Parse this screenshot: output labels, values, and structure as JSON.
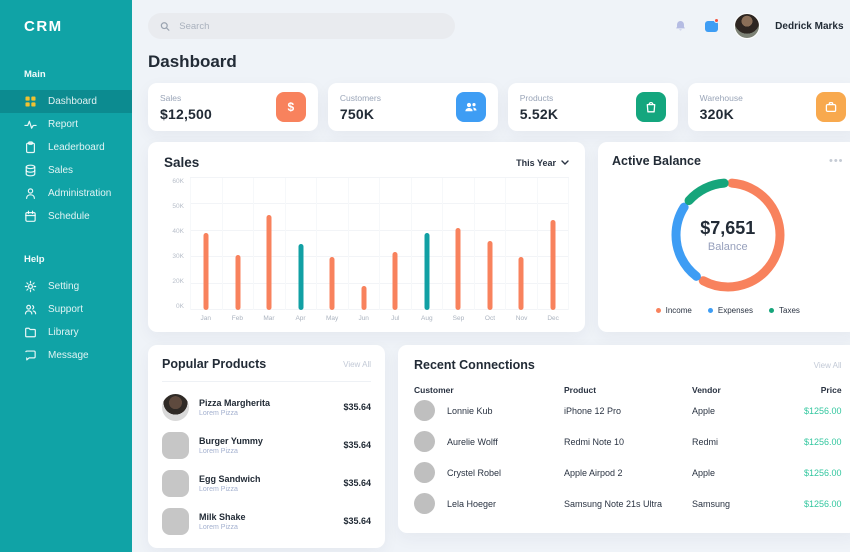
{
  "sidebar": {
    "logo": "CRM",
    "sections": [
      {
        "label": "Main",
        "items": [
          {
            "label": "Dashboard",
            "icon": "dashboard-grid-icon",
            "active": true
          },
          {
            "label": "Report",
            "icon": "activity-icon",
            "active": false
          },
          {
            "label": "Leaderboard",
            "icon": "clipboard-icon",
            "active": false
          },
          {
            "label": "Sales",
            "icon": "database-icon",
            "active": false
          },
          {
            "label": "Administration",
            "icon": "user-icon",
            "active": false
          },
          {
            "label": "Schedule",
            "icon": "calendar-icon",
            "active": false
          }
        ]
      },
      {
        "label": "Help",
        "items": [
          {
            "label": "Setting",
            "icon": "gear-icon",
            "active": false
          },
          {
            "label": "Support",
            "icon": "users-icon",
            "active": false
          },
          {
            "label": "Library",
            "icon": "folder-icon",
            "active": false
          },
          {
            "label": "Message",
            "icon": "chat-icon",
            "active": false
          }
        ]
      }
    ]
  },
  "topbar": {
    "search_placeholder": "Search",
    "user_name": "Dedrick Marks"
  },
  "page": {
    "title": "Dashboard"
  },
  "stats": [
    {
      "label": "Sales",
      "value": "$12,500",
      "icon": "dollar-icon",
      "color": "#F8825D"
    },
    {
      "label": "Customers",
      "value": "750K",
      "icon": "users-icon",
      "color": "#3E9DF4"
    },
    {
      "label": "Products",
      "value": "5.52K",
      "icon": "shopping-bag-icon",
      "color": "#14A67E"
    },
    {
      "label": "Warehouse",
      "value": "320K",
      "icon": "briefcase-icon",
      "color": "#F8A94E"
    }
  ],
  "chart_data": [
    {
      "type": "bar",
      "title": "Sales",
      "filter_label": "This Year",
      "categories": [
        "Jan",
        "Feb",
        "Mar",
        "Apr",
        "May",
        "Jun",
        "Jul",
        "Aug",
        "Sep",
        "Oct",
        "Nov",
        "Dec"
      ],
      "values": [
        39,
        31,
        46,
        35,
        30,
        18,
        32,
        39,
        41,
        36,
        30,
        44
      ],
      "unit": "K",
      "xlabel": "",
      "ylabel": "",
      "ylim": [
        0,
        60
      ],
      "y_ticks": [
        "60K",
        "50K",
        "40K",
        "30K",
        "20K",
        "0K"
      ],
      "grid": true,
      "bar_color": "#F8825D",
      "highlight_color": "#11A0A4",
      "highlight_indices": [
        3,
        7
      ],
      "legend_position": "none"
    },
    {
      "type": "pie",
      "title": "Active Balance",
      "center_value": "$7,651",
      "center_label": "Balance",
      "legend_position": "bottom",
      "segments": [
        {
          "name": "Income",
          "value": 60,
          "color": "#F8825D"
        },
        {
          "name": "Expenses",
          "value": 25,
          "color": "#3E9DF4"
        },
        {
          "name": "Taxes",
          "value": 13,
          "color": "#16A57B"
        }
      ]
    }
  ],
  "popular_products": {
    "title": "Popular Products",
    "view_all": "View All",
    "items": [
      {
        "name": "Pizza Margherita",
        "subtitle": "Lorem Pizza",
        "price": "$35.64"
      },
      {
        "name": "Burger Yummy",
        "subtitle": "Lorem Pizza",
        "price": "$35.64"
      },
      {
        "name": "Egg Sandwich",
        "subtitle": "Lorem Pizza",
        "price": "$35.64"
      },
      {
        "name": "Milk Shake",
        "subtitle": "Lorem Pizza",
        "price": "$35.64"
      }
    ]
  },
  "recent_connections": {
    "title": "Recent Connections",
    "view_all": "View All",
    "headers": [
      "Customer",
      "Product",
      "Vendor",
      "Price"
    ],
    "price_color": "#33C79F",
    "rows": [
      {
        "customer": "Lonnie Kub",
        "product": "iPhone 12 Pro",
        "vendor": "Apple",
        "price": "$1256.00"
      },
      {
        "customer": "Aurelie Wolff",
        "product": "Redmi Note 10",
        "vendor": "Redmi",
        "price": "$1256.00"
      },
      {
        "customer": "Crystel Robel",
        "product": "Apple Airpod 2",
        "vendor": "Apple",
        "price": "$1256.00"
      },
      {
        "customer": "Lela Hoeger",
        "product": "Samsung Note 21s Ultra",
        "vendor": "Samsung",
        "price": "$1256.00"
      }
    ]
  }
}
